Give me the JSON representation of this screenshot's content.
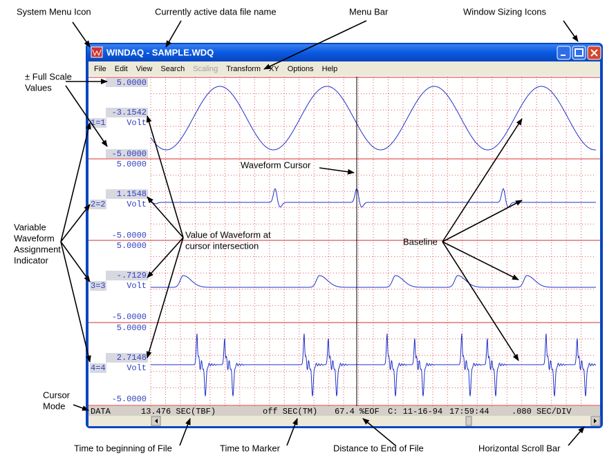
{
  "window": {
    "title": "WINDAQ - SAMPLE.WDQ",
    "menu": [
      "File",
      "Edit",
      "View",
      "Search",
      "Scaling",
      "Transform",
      "XY",
      "Options",
      "Help"
    ]
  },
  "channels": [
    {
      "top": "5.0000",
      "value": "-3.1542",
      "assign": "1=1",
      "unit": "Volt",
      "bottom": "-5.0000"
    },
    {
      "top": "5.0000",
      "value": "1.1548",
      "assign": "2=2",
      "unit": "Volt",
      "bottom": "-5.0000"
    },
    {
      "top": "5.0000",
      "value": "-.7129",
      "assign": "3=3",
      "unit": "Volt",
      "bottom": "-5.0000"
    },
    {
      "top": "5.0000",
      "value": "2.7148",
      "assign": "4=4",
      "unit": "Volt",
      "bottom": "-5.0000"
    }
  ],
  "status_bar": [
    "DATA",
    "13.476 SEC(TBF)",
    "off SEC(TM)",
    "67.4 %EOF",
    "C: 11-16-94",
    "17:59:44",
    ".080 SEC/DIV"
  ],
  "annotations": [
    {
      "lines": [
        "System Menu Icon"
      ]
    },
    {
      "lines": [
        "Currently active data file name"
      ]
    },
    {
      "lines": [
        "Menu Bar"
      ]
    },
    {
      "lines": [
        "Window Sizing Icons"
      ]
    },
    {
      "lines": [
        "± Full Scale",
        "Values"
      ]
    },
    {
      "lines": [
        "Waveform Cursor"
      ]
    },
    {
      "lines": [
        "Variable",
        "Waveform",
        "Assignment",
        "Indicator"
      ]
    },
    {
      "lines": [
        "Value of Waveform at",
        "cursor intersection"
      ]
    },
    {
      "lines": [
        "Baseline"
      ]
    },
    {
      "lines": [
        "Cursor",
        "Mode"
      ]
    },
    {
      "lines": [
        "Time to beginning of File"
      ]
    },
    {
      "lines": [
        "Time to Marker"
      ]
    },
    {
      "lines": [
        "Distance to End of File"
      ]
    },
    {
      "lines": [
        "Horizontal Scroll Bar"
      ]
    }
  ]
}
